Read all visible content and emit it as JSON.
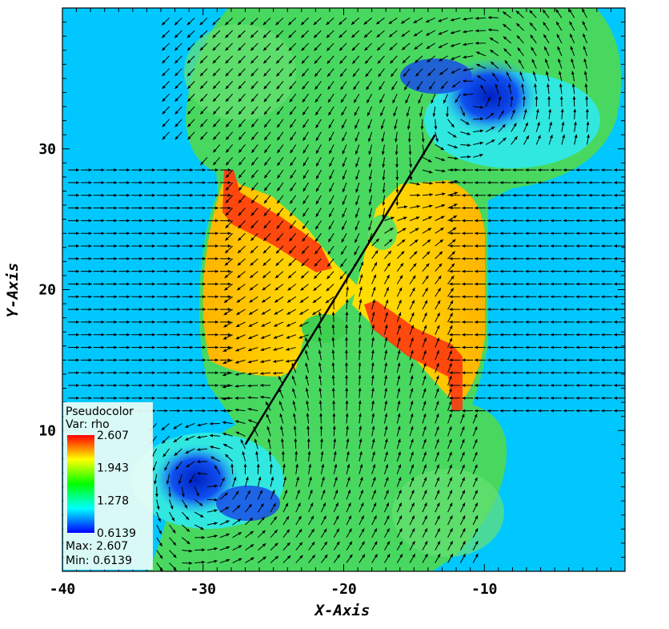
{
  "chart_data": {
    "type": "heatmap",
    "plot_type": "Pseudocolor with vector overlay",
    "xlabel": "X-Axis",
    "ylabel": "Y-Axis",
    "xlim": [
      -40,
      0
    ],
    "ylim": [
      0,
      40
    ],
    "x_ticks": [
      -40,
      -30,
      -20,
      -10
    ],
    "y_ticks": [
      10,
      20,
      30
    ],
    "grid": false,
    "legend": {
      "position": "bottom-left",
      "title": "Pseudocolor",
      "var_label": "Var: rho",
      "colorbar_labels": [
        "2.607",
        "1.943",
        "1.278",
        "0.6139"
      ],
      "colorbar_values": [
        2.607,
        1.943,
        1.278,
        0.6139
      ],
      "max_label": "Max:  2.607",
      "min_label": "Min:  0.6139",
      "colormap": [
        "#ff0000",
        "#ffff00",
        "#00ff00",
        "#00ffff",
        "#0000ff"
      ]
    },
    "colors": {
      "background_field": "#00c8ff",
      "shocked_region": "#40e060",
      "dense_core": "#ffc800",
      "max_density": "#ff3000",
      "vortex": "#1040e0"
    },
    "features": {
      "slip_line": {
        "x": [
          -27.0,
          -13.5
        ],
        "y": [
          9.0,
          31.0
        ]
      },
      "max_density_strips": [
        {
          "x": [
            -28.0,
            -28.0
          ],
          "y": [
            25.5,
            28.5
          ]
        },
        {
          "x": [
            -12.0,
            -12.0
          ],
          "y": [
            11.5,
            14.5
          ]
        }
      ],
      "vortices": [
        {
          "x": -10.5,
          "y": 33.5
        },
        {
          "x": -30.0,
          "y": 6.5
        }
      ]
    }
  }
}
